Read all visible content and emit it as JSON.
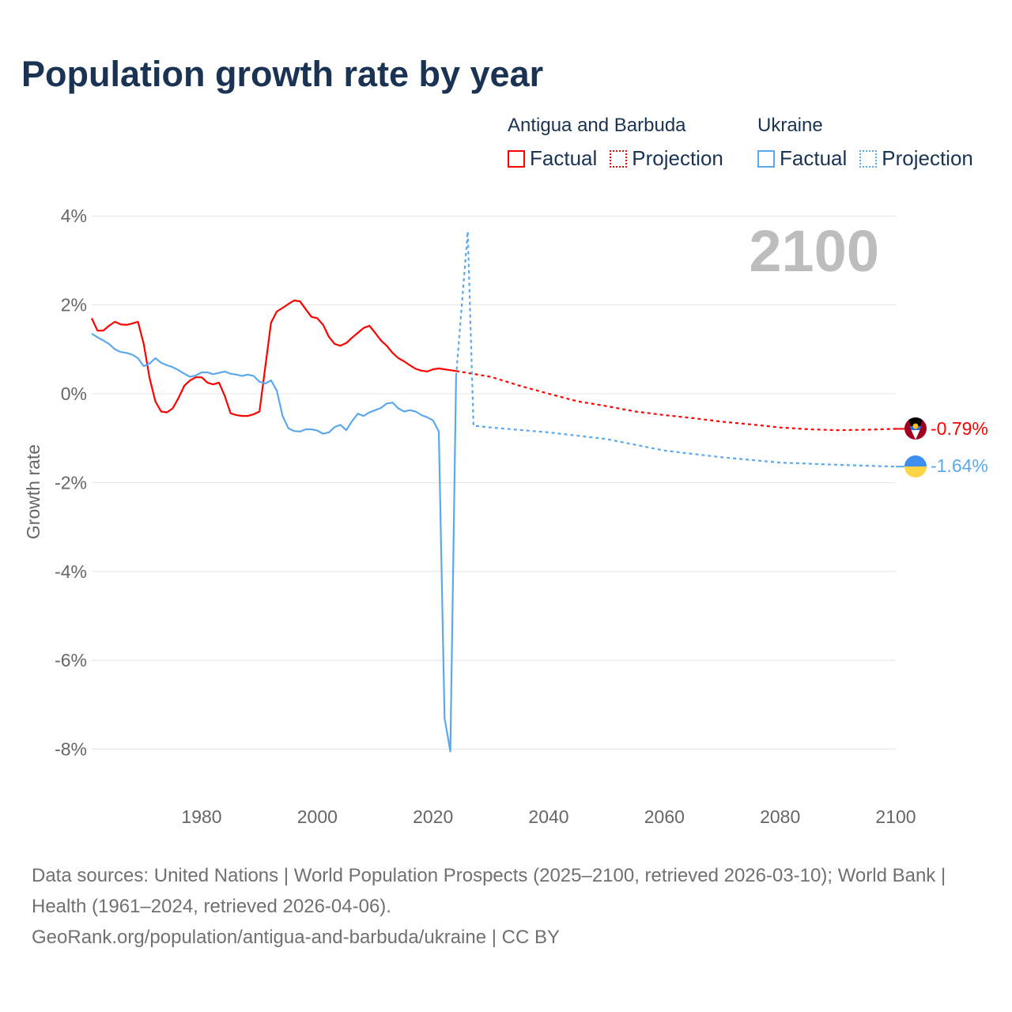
{
  "title": "Population growth rate by year",
  "legend": {
    "groups": [
      {
        "name": "Antigua and Barbuda",
        "color": "#ff0000",
        "factual_label": "Factual",
        "projection_label": "Projection"
      },
      {
        "name": "Ukraine",
        "color": "#5ca8ec",
        "factual_label": "Factual",
        "projection_label": "Projection"
      }
    ]
  },
  "year_label": "2100",
  "footer": {
    "sources": "Data sources: United Nations | World Population Prospects (2025–2100, retrieved 2026-03-10); World Bank | Health (1961–2024, retrieved 2026-04-06).",
    "link": "GeoRank.org/population/antigua-and-barbuda/ukraine | CC BY"
  },
  "chart_data": {
    "type": "line",
    "title": "Population growth rate by year",
    "xlabel": "",
    "ylabel": "Growth rate",
    "xlim": [
      1961,
      2100
    ],
    "ylim": [
      -8.9,
      4.3
    ],
    "xticks": [
      1980,
      2000,
      2020,
      2040,
      2060,
      2080,
      2100
    ],
    "yticks": [
      4,
      2,
      0,
      -2,
      -4,
      -6,
      -8
    ],
    "ytick_labels": [
      "4%",
      "2%",
      "0%",
      "-2%",
      "-4%",
      "-6%",
      "-8%"
    ],
    "grid": true,
    "legend_position": "top-right",
    "series": [
      {
        "name": "Antigua and Barbuda",
        "color": "#ff0000",
        "end_label": "-0.79%",
        "factual": {
          "x": [
            1961,
            1962,
            1963,
            1964,
            1965,
            1966,
            1967,
            1968,
            1969,
            1970,
            1971,
            1972,
            1973,
            1974,
            1975,
            1976,
            1977,
            1978,
            1979,
            1980,
            1981,
            1982,
            1983,
            1984,
            1985,
            1986,
            1987,
            1988,
            1989,
            1990,
            1991,
            1992,
            1993,
            1994,
            1995,
            1996,
            1997,
            1998,
            1999,
            2000,
            2001,
            2002,
            2003,
            2004,
            2005,
            2006,
            2007,
            2008,
            2009,
            2010,
            2011,
            2012,
            2013,
            2014,
            2015,
            2016,
            2017,
            2018,
            2019,
            2020,
            2021,
            2022,
            2023,
            2024
          ],
          "y": [
            1.7,
            1.42,
            1.42,
            1.53,
            1.62,
            1.56,
            1.55,
            1.58,
            1.62,
            1.12,
            0.35,
            -0.17,
            -0.4,
            -0.42,
            -0.33,
            -0.1,
            0.18,
            0.3,
            0.37,
            0.37,
            0.25,
            0.21,
            0.25,
            -0.05,
            -0.44,
            -0.48,
            -0.5,
            -0.5,
            -0.46,
            -0.4,
            0.6,
            1.6,
            1.85,
            1.93,
            2.02,
            2.1,
            2.08,
            1.9,
            1.73,
            1.7,
            1.55,
            1.28,
            1.12,
            1.08,
            1.14,
            1.26,
            1.37,
            1.48,
            1.53,
            1.37,
            1.2,
            1.08,
            0.92,
            0.8,
            0.73,
            0.64,
            0.56,
            0.52,
            0.5,
            0.55,
            0.57,
            0.55,
            0.53,
            0.51
          ]
        },
        "projection": {
          "x": [
            2024,
            2025,
            2030,
            2035,
            2040,
            2045,
            2050,
            2055,
            2060,
            2065,
            2070,
            2075,
            2080,
            2085,
            2090,
            2095,
            2100
          ],
          "y": [
            0.51,
            0.49,
            0.38,
            0.18,
            0.0,
            -0.17,
            -0.28,
            -0.4,
            -0.48,
            -0.55,
            -0.63,
            -0.69,
            -0.76,
            -0.8,
            -0.82,
            -0.81,
            -0.79
          ]
        }
      },
      {
        "name": "Ukraine",
        "color": "#5ca8ec",
        "end_label": "-1.64%",
        "factual": {
          "x": [
            1961,
            1962,
            1963,
            1964,
            1965,
            1966,
            1967,
            1968,
            1969,
            1970,
            1971,
            1972,
            1973,
            1974,
            1975,
            1976,
            1977,
            1978,
            1979,
            1980,
            1981,
            1982,
            1983,
            1984,
            1985,
            1986,
            1987,
            1988,
            1989,
            1990,
            1991,
            1992,
            1993,
            1994,
            1995,
            1996,
            1997,
            1998,
            1999,
            2000,
            2001,
            2002,
            2003,
            2004,
            2005,
            2006,
            2007,
            2008,
            2009,
            2010,
            2011,
            2012,
            2013,
            2014,
            2015,
            2016,
            2017,
            2018,
            2019,
            2020,
            2021,
            2022,
            2023,
            2024
          ],
          "y": [
            1.35,
            1.27,
            1.2,
            1.12,
            1.0,
            0.94,
            0.92,
            0.88,
            0.8,
            0.62,
            0.68,
            0.8,
            0.7,
            0.64,
            0.6,
            0.53,
            0.45,
            0.38,
            0.41,
            0.48,
            0.48,
            0.44,
            0.47,
            0.5,
            0.45,
            0.43,
            0.4,
            0.43,
            0.4,
            0.27,
            0.23,
            0.3,
            0.07,
            -0.5,
            -0.78,
            -0.84,
            -0.85,
            -0.8,
            -0.8,
            -0.83,
            -0.9,
            -0.87,
            -0.75,
            -0.7,
            -0.82,
            -0.62,
            -0.45,
            -0.5,
            -0.42,
            -0.37,
            -0.32,
            -0.22,
            -0.2,
            -0.33,
            -0.4,
            -0.37,
            -0.4,
            -0.48,
            -0.53,
            -0.6,
            -0.85,
            -7.3,
            -8.05,
            0.4
          ]
        },
        "projection": {
          "x": [
            2024,
            2026,
            2027,
            2030,
            2040,
            2050,
            2060,
            2070,
            2080,
            2090,
            2100
          ],
          "y": [
            0.4,
            3.65,
            -0.72,
            -0.76,
            -0.87,
            -1.02,
            -1.28,
            -1.43,
            -1.55,
            -1.6,
            -1.64
          ]
        }
      }
    ]
  }
}
